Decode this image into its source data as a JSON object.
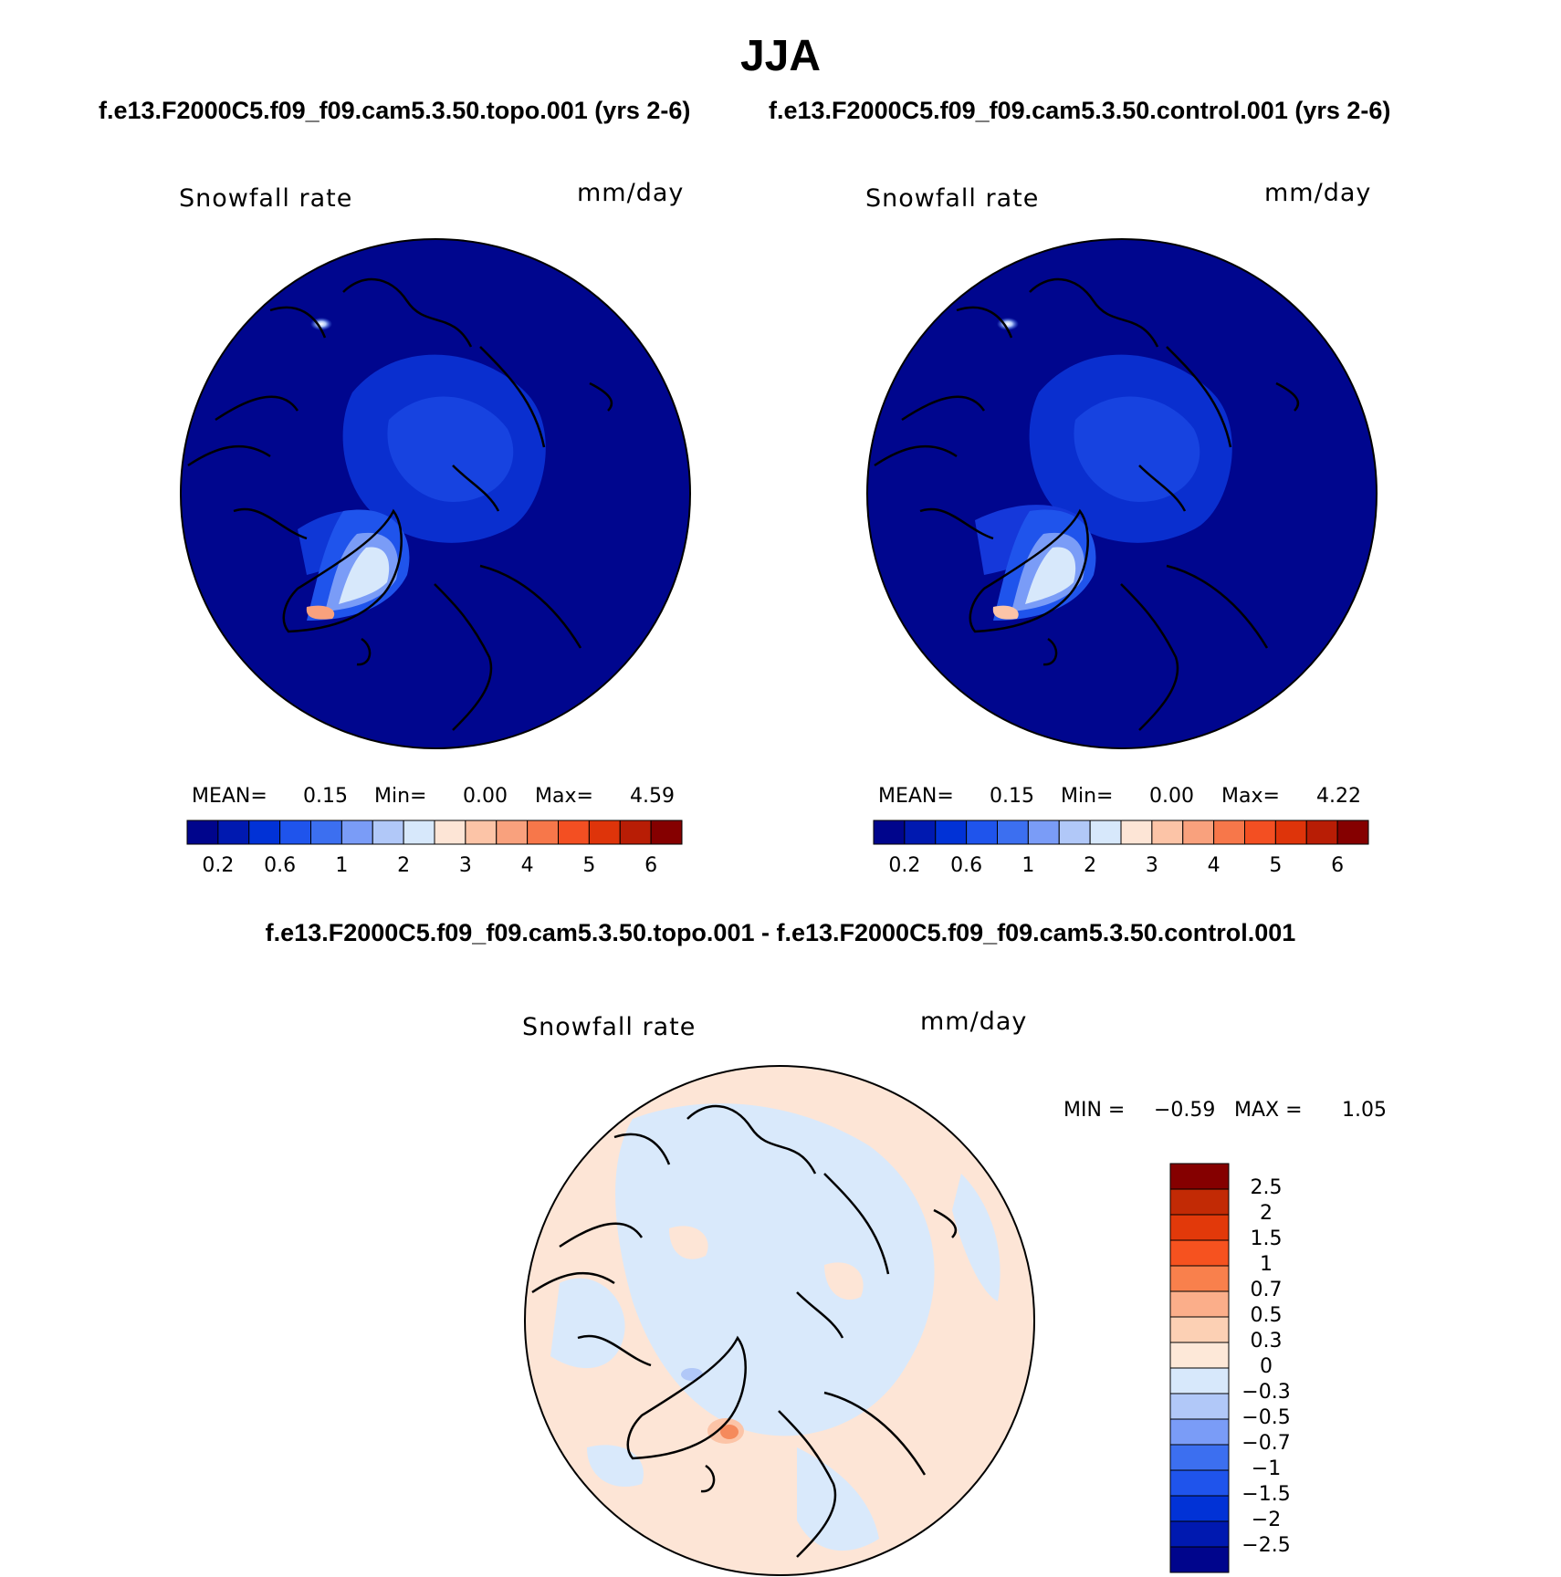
{
  "figure": {
    "title": "JJA",
    "panel_a_subtitle": "f.e13.F2000C5.f09_f09.cam5.3.50.topo.001 (yrs 2-6)",
    "panel_b_subtitle": "f.e13.F2000C5.f09_f09.cam5.3.50.control.001 (yrs 2-6)",
    "diff_title": "f.e13.F2000C5.f09_f09.cam5.3.50.topo.001 - f.e13.F2000C5.f09_f09.cam5.3.50.control.001"
  },
  "panel_a": {
    "variable": "Snowfall rate",
    "units": "mm/day",
    "mean_label": "MEAN=",
    "mean_value": "0.15",
    "min_label": "Min=",
    "min_value": "0.00",
    "max_label": "Max=",
    "max_value": "4.59"
  },
  "panel_b": {
    "variable": "Snowfall rate",
    "units": "mm/day",
    "mean_label": "MEAN=",
    "mean_value": "0.15",
    "min_label": "Min=",
    "min_value": "0.00",
    "max_label": "Max=",
    "max_value": "4.22"
  },
  "panel_diff": {
    "variable": "Snowfall rate",
    "units": "mm/day",
    "min_label": "MIN =",
    "min_value": "−0.59",
    "max_label": "MAX =",
    "max_value": "1.05"
  },
  "colorbar_abs": {
    "colors": [
      "#00058c",
      "#0019b0",
      "#0132d6",
      "#1f54ec",
      "#3c6ff0",
      "#7a9cf7",
      "#b1c8f8",
      "#d7e8fb",
      "#fde5d6",
      "#fcc4a7",
      "#f9a17d",
      "#f7774a",
      "#f34f22",
      "#de340a",
      "#b81d05",
      "#850000"
    ],
    "labels": [
      "0.2",
      "0.6",
      "1",
      "2",
      "3",
      "4",
      "5",
      "6"
    ]
  },
  "colorbar_diff": {
    "colors": [
      "#850000",
      "#c22a05",
      "#e2390a",
      "#f6521f",
      "#f9804c",
      "#fbae8a",
      "#fcd0b4",
      "#fde8d8",
      "#d7e8fb",
      "#b1c8f8",
      "#7a9cf7",
      "#3c6ff0",
      "#1f54ec",
      "#0132d6",
      "#0019b0",
      "#00058c"
    ],
    "labels": [
      "2.5",
      "2",
      "1.5",
      "1",
      "0.7",
      "0.5",
      "0.3",
      "0",
      "−0.3",
      "−0.5",
      "−0.7",
      "−1",
      "−1.5",
      "−2",
      "−2.5"
    ]
  },
  "colors": {
    "ocean_abs": "#00068e",
    "ice_region_abs": "#0a2fcf",
    "diff_base": "#d9e9fb",
    "diff_positive": "#fde5d6",
    "diff_peak": "#f58a5c"
  }
}
